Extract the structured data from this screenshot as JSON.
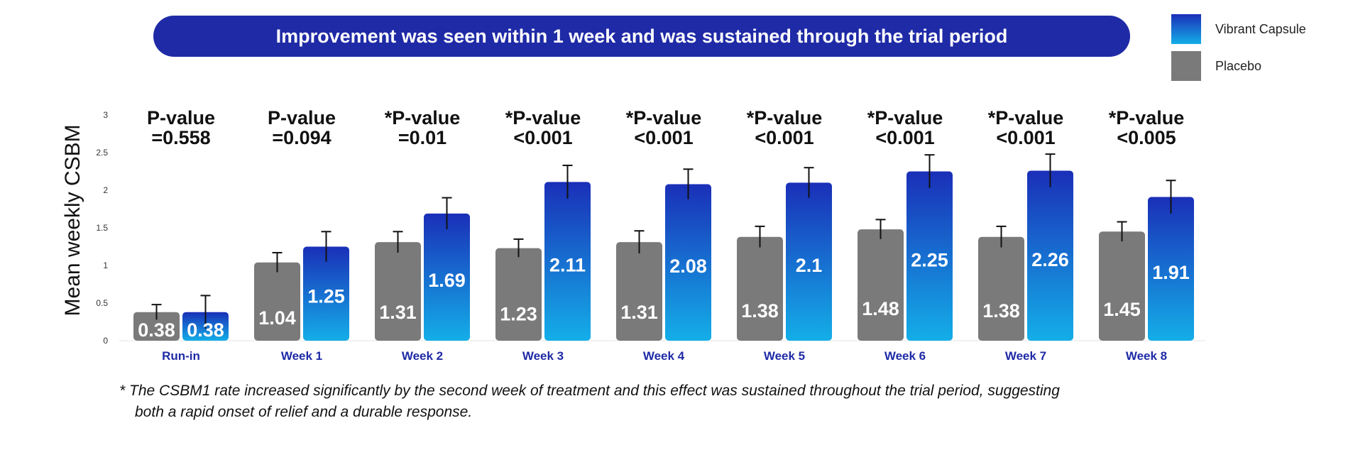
{
  "chart_data": {
    "type": "bar",
    "title": "Improvement was seen within 1 week and was sustained through the trial period",
    "ylabel": "Mean weekly CSBM",
    "xlabel": "",
    "ylim": [
      0,
      3
    ],
    "yticks": [
      "0",
      "0.5",
      "1",
      "1.5",
      "2",
      "2.5",
      "3"
    ],
    "categories": [
      "Run-in",
      "Week 1",
      "Week 2",
      "Week 3",
      "Week 4",
      "Week 5",
      "Week 6",
      "Week 7",
      "Week 8"
    ],
    "series": [
      {
        "name": "Placebo",
        "color": "#7a7a7a",
        "values": [
          0.38,
          1.04,
          1.31,
          1.23,
          1.31,
          1.38,
          1.48,
          1.38,
          1.45
        ],
        "labels": [
          "0.38",
          "1.04",
          "1.31",
          "1.23",
          "1.31",
          "1.38",
          "1.48",
          "1.38",
          "1.45"
        ],
        "error": [
          0.1,
          0.13,
          0.14,
          0.12,
          0.15,
          0.14,
          0.13,
          0.14,
          0.13
        ]
      },
      {
        "name": "Vibrant Capsule",
        "color": "#1a2fb8",
        "color_light": "#14aee8",
        "values": [
          0.38,
          1.25,
          1.69,
          2.11,
          2.08,
          2.1,
          2.25,
          2.26,
          1.91
        ],
        "labels": [
          "0.38",
          "1.25",
          "1.69",
          "2.11",
          "2.08",
          "2.1",
          "2.25",
          "2.26",
          "1.91"
        ],
        "error": [
          0.22,
          0.2,
          0.21,
          0.22,
          0.2,
          0.2,
          0.22,
          0.22,
          0.22
        ]
      }
    ],
    "annotations": [
      {
        "line1": "P-value",
        "line2": "=0.558"
      },
      {
        "line1": "P-value",
        "line2": "=0.094"
      },
      {
        "line1": "*P-value",
        "line2": "=0.01"
      },
      {
        "line1": "*P-value",
        "line2": "<0.001"
      },
      {
        "line1": "*P-value",
        "line2": "<0.001"
      },
      {
        "line1": "*P-value",
        "line2": "<0.001"
      },
      {
        "line1": "*P-value",
        "line2": "<0.001"
      },
      {
        "line1": "*P-value",
        "line2": "<0.001"
      },
      {
        "line1": "*P-value",
        "line2": "<0.005"
      }
    ],
    "legend": "top-right",
    "grid": false
  },
  "footnote": {
    "line1": "* The CSBM1 rate increased significantly by the second week of treatment and this effect was sustained throughout the trial period, suggesting",
    "line2": "both a rapid onset of relief and a durable response."
  }
}
